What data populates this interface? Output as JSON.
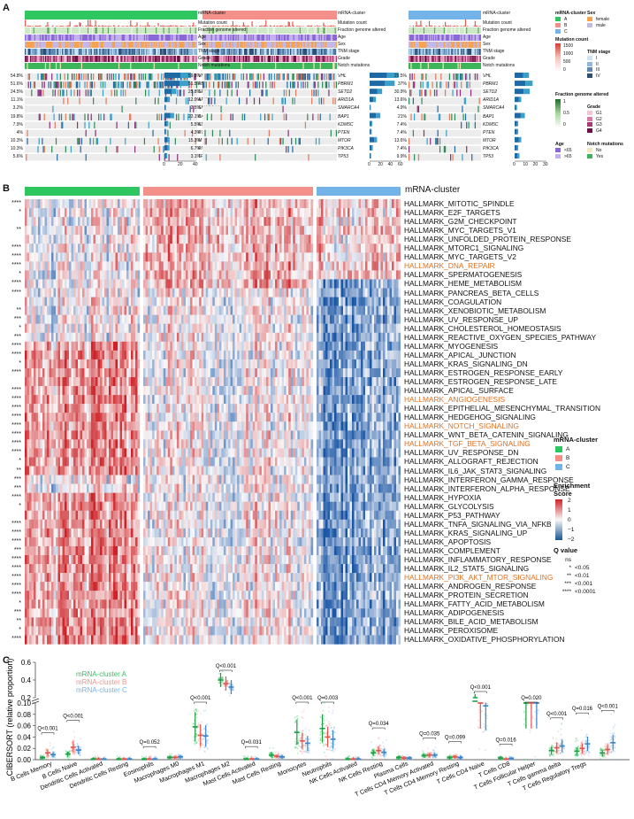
{
  "panels": {
    "a": "A",
    "b": "B",
    "c": "C"
  },
  "colors": {
    "A": "#2ec65f",
    "B": "#f4908a",
    "C": "#74b3e8"
  },
  "panel_a": {
    "track_labels": [
      "mRNA-cluster",
      "Mutation count",
      "Fraction genome altered",
      "Age",
      "Sex",
      "TNM stage",
      "Grade",
      "Notch mutations"
    ],
    "genes": [
      "VHL",
      "PBRM1",
      "SETD2",
      "ARID1A",
      "SMARCA4",
      "BAP1",
      "KDM5C",
      "PTEN",
      "MTOR",
      "PIK3CA",
      "TP53"
    ],
    "pct_A": [
      "54.8%",
      "51.6%",
      "24.5%",
      "11.1%",
      "3.2%",
      "19.8%",
      "7.9%",
      "4%",
      "10.3%",
      "10.3%",
      "5.6%"
    ],
    "pct_B": [
      "59.5%",
      "51.5%",
      "25.8%",
      "12.9%",
      "2.5%",
      "22.1%",
      "5.5%",
      "4.3%",
      "15.3%",
      "6.7%",
      "3.1%"
    ],
    "pct_C": [
      "29.5%",
      "37%",
      "30.9%",
      "13.6%",
      "4.9%",
      "21%",
      "7.4%",
      "7.4%",
      "13.6%",
      "7.4%",
      "9.9%"
    ],
    "axis_A": [
      "0",
      "20",
      "40"
    ],
    "axis_B": [
      "0",
      "20",
      "40",
      "60"
    ],
    "axis_C": [
      "0",
      "10",
      "20",
      "30"
    ],
    "legend": {
      "cluster_title": "mRNA-cluster",
      "cluster_items": [
        "A",
        "B",
        "C"
      ],
      "sex_title": "Sex",
      "sex_items": [
        "female",
        "male"
      ],
      "mut_title": "Mutation count",
      "mut_ticks": [
        "1500",
        "1000",
        "500",
        "0"
      ],
      "tnm_title": "TNM stage",
      "tnm_items": [
        "I",
        "II",
        "III",
        "IV"
      ],
      "fga_title": "Fraction genome altered",
      "fga_ticks": [
        "1",
        "0.5",
        "0"
      ],
      "grade_title": "Grade",
      "grade_items": [
        "G1",
        "G2",
        "G3",
        "G4"
      ],
      "age_title": "Age",
      "age_items": [
        "<65",
        ">65"
      ],
      "notch_title": "Notch mutations",
      "notch_items": [
        "No",
        "Yes"
      ]
    }
  },
  "panel_b": {
    "cluster_header": "mRNA-cluster",
    "pathways": [
      {
        "name": "HALLMARK_MITOTIC_SPINDLE",
        "q": "****",
        "hl": false
      },
      {
        "name": "HALLMARK_E2F_TARGETS",
        "q": "*",
        "hl": false
      },
      {
        "name": "HALLMARK_G2M_CHECKPOINT",
        "q": "",
        "hl": false
      },
      {
        "name": "HALLMARK_MYC_TARGETS_V1",
        "q": "**",
        "hl": false
      },
      {
        "name": "HALLMARK_UNFOLDED_PROTEIN_RESPONSE",
        "q": "",
        "hl": false
      },
      {
        "name": "HALLMARK_MTORC1_SIGNALING",
        "q": "****",
        "hl": false
      },
      {
        "name": "HALLMARK_MYC_TARGETS_V2",
        "q": "****",
        "hl": false
      },
      {
        "name": "HALLMARK_DNA_REPAIR",
        "q": "****",
        "hl": true
      },
      {
        "name": "HALLMARK_SPERMATOGENESIS",
        "q": "*",
        "hl": false
      },
      {
        "name": "HALLMARK_HEME_METABOLISM",
        "q": "****",
        "hl": false
      },
      {
        "name": "HALLMARK_PANCREAS_BETA_CELLS",
        "q": "****",
        "hl": false
      },
      {
        "name": "HALLMARK_COAGULATION",
        "q": "",
        "hl": false
      },
      {
        "name": "HALLMARK_XENOBIOTIC_METABOLISM",
        "q": "**",
        "hl": false
      },
      {
        "name": "HALLMARK_UV_RESPONSE_UP",
        "q": "***",
        "hl": false
      },
      {
        "name": "HALLMARK_CHOLESTEROL_HOMEOSTASIS",
        "q": "*",
        "hl": false
      },
      {
        "name": "HALLMARK_REACTIVE_OXYGEN_SPECIES_PATHWAY",
        "q": "***",
        "hl": false
      },
      {
        "name": "HALLMARK_MYOGENESIS",
        "q": "****",
        "hl": false
      },
      {
        "name": "HALLMARK_APICAL_JUNCTION",
        "q": "****",
        "hl": false
      },
      {
        "name": "HALLMARK_KRAS_SIGNALING_DN",
        "q": "*",
        "hl": false
      },
      {
        "name": "HALLMARK_ESTROGEN_RESPONSE_EARLY",
        "q": "****",
        "hl": false
      },
      {
        "name": "HALLMARK_ESTROGEN_RESPONSE_LATE",
        "q": "",
        "hl": false
      },
      {
        "name": "HALLMARK_APICAL_SURFACE",
        "q": "****",
        "hl": false
      },
      {
        "name": "HALLMARK_ANGIOGENESIS",
        "q": "****",
        "hl": true
      },
      {
        "name": "HALLMARK_EPITHELIAL_MESENCHYMAL_TRANSITION",
        "q": "****",
        "hl": false
      },
      {
        "name": "HALLMARK_HEDGEHOG_SIGNALING",
        "q": "****",
        "hl": false
      },
      {
        "name": "HALLMARK_NOTCH_SIGNALING",
        "q": "****",
        "hl": true
      },
      {
        "name": "HALLMARK_WNT_BETA_CATENIN_SIGNALING",
        "q": "****",
        "hl": false
      },
      {
        "name": "HALLMARK_TGF_BETA_SIGNALING",
        "q": "****",
        "hl": true
      },
      {
        "name": "HALLMARK_UV_RESPONSE_DN",
        "q": "****",
        "hl": false
      },
      {
        "name": "HALLMARK_ALLOGRAFT_REJECTION",
        "q": "*",
        "hl": false
      },
      {
        "name": "HALLMARK_IL6_JAK_STAT3_SIGNALING",
        "q": "**",
        "hl": false
      },
      {
        "name": "HALLMARK_INTERFERON_GAMMA_RESPONSE",
        "q": "***",
        "hl": false
      },
      {
        "name": "HALLMARK_INTERFERON_ALPHA_RESPONSE",
        "q": "***",
        "hl": false
      },
      {
        "name": "HALLMARK_HYPOXIA",
        "q": "****",
        "hl": false
      },
      {
        "name": "HALLMARK_GLYCOLYSIS",
        "q": "*",
        "hl": false
      },
      {
        "name": "HALLMARK_P53_PATHWAY",
        "q": "",
        "hl": false
      },
      {
        "name": "HALLMARK_TNFA_SIGNALING_VIA_NFKB",
        "q": "****",
        "hl": false
      },
      {
        "name": "HALLMARK_KRAS_SIGNALING_UP",
        "q": "****",
        "hl": false
      },
      {
        "name": "HALLMARK_APOPTOSIS",
        "q": "****",
        "hl": false
      },
      {
        "name": "HALLMARK_COMPLEMENT",
        "q": "***",
        "hl": false
      },
      {
        "name": "HALLMARK_INFLAMMATORY_RESPONSE",
        "q": "****",
        "hl": false
      },
      {
        "name": "HALLMARK_IL2_STAT5_SIGNALING",
        "q": "****",
        "hl": false
      },
      {
        "name": "HALLMARK_PI3K_AKT_MTOR_SIGNALING",
        "q": "****",
        "hl": true
      },
      {
        "name": "HALLMARK_ANDROGEN_RESPONSE",
        "q": "****",
        "hl": false
      },
      {
        "name": "HALLMARK_PROTEIN_SECRETION",
        "q": "****",
        "hl": false
      },
      {
        "name": "HALLMARK_FATTY_ACID_METABOLISM",
        "q": "*",
        "hl": false
      },
      {
        "name": "HALLMARK_ADIPOGENESIS",
        "q": "***",
        "hl": false
      },
      {
        "name": "HALLMARK_BILE_ACID_METABOLISM",
        "q": "**",
        "hl": false
      },
      {
        "name": "HALLMARK_PEROXISOME",
        "q": "*",
        "hl": false
      },
      {
        "name": "HALLMARK_OXIDATIVE_PHOSPHORYLATION",
        "q": "****",
        "hl": false
      }
    ],
    "legend": {
      "cluster_title": "mRNA-cluster",
      "cluster_items": [
        "A",
        "B",
        "C"
      ],
      "score_title_1": "Enrichment",
      "score_title_2": "Score",
      "score_ticks": [
        "2",
        "1",
        "0",
        "−1",
        "−2"
      ],
      "q_title": "Q value",
      "q_items": [
        {
          "sym": "ns",
          "val": ""
        },
        {
          "sym": "*",
          "val": "<0.05"
        },
        {
          "sym": "**",
          "val": "<0.01"
        },
        {
          "sym": "***",
          "val": "<0.001"
        },
        {
          "sym": "****",
          "val": "<0.0001"
        }
      ]
    }
  },
  "panel_c": {
    "ylabel": "CIBERSORT (relative proportion)",
    "legend": [
      "mRNA-cluster A",
      "mRNA-cluster B",
      "mRNA-cluster C"
    ],
    "y_ticks_upper": [
      "0.6",
      "0.4",
      "0.2"
    ],
    "y_ticks_lower": [
      "0.10",
      "0.08",
      "0.06",
      "0.04",
      "0.02",
      "0.00"
    ],
    "cells": [
      {
        "name": "B Cells Memory",
        "q": "Q<0.001",
        "m": [
          0.004,
          0.012,
          0.009
        ]
      },
      {
        "name": "B Cells Naive",
        "q": "Q<0.001",
        "m": [
          0.01,
          0.022,
          0.017
        ]
      },
      {
        "name": "Dendritic Cells Activated",
        "q": "",
        "m": [
          0.001,
          0.001,
          0.001
        ]
      },
      {
        "name": "Dendritic Cells Resting",
        "q": "",
        "m": [
          0.001,
          0.001,
          0.001
        ]
      },
      {
        "name": "Eosinophils",
        "q": "Q=0.052",
        "m": [
          0.001,
          0.001,
          0.001
        ]
      },
      {
        "name": "Macrophages M0",
        "q": "",
        "m": [
          0.004,
          0.004,
          0.005
        ]
      },
      {
        "name": "Macrophages M1",
        "q": "Q<0.001",
        "m": [
          0.058,
          0.043,
          0.042
        ]
      },
      {
        "name": "Macrophages M2",
        "q": "Q<0.001",
        "m": [
          0.4,
          0.36,
          0.32
        ]
      },
      {
        "name": "Mast Cells Activated",
        "q": "Q=0.031",
        "m": [
          0.001,
          0.001,
          0.001
        ]
      },
      {
        "name": "Mast Cells Resting",
        "q": "",
        "m": [
          0.008,
          0.006,
          0.005
        ]
      },
      {
        "name": "Monocytes",
        "q": "Q<0.001",
        "m": [
          0.048,
          0.033,
          0.029
        ]
      },
      {
        "name": "Neutrophils",
        "q": "Q=0.003",
        "m": [
          0.055,
          0.04,
          0.036
        ]
      },
      {
        "name": "NK Cells Activated",
        "q": "",
        "m": [
          0.001,
          0.001,
          0.001
        ]
      },
      {
        "name": "NK Cells Resting",
        "q": "Q=0.034",
        "m": [
          0.012,
          0.016,
          0.013
        ]
      },
      {
        "name": "Plasma Cells",
        "q": "",
        "m": [
          0.004,
          0.003,
          0.003
        ]
      },
      {
        "name": "T Cells CD4 Memory Activated",
        "q": "Q=0.035",
        "m": [
          0.007,
          0.008,
          0.008
        ]
      },
      {
        "name": "T Cells CD4 Memory Resting",
        "q": "Q=0.099",
        "m": [
          0.004,
          0.005,
          0.004
        ]
      },
      {
        "name": "T Cells CD4 Naive",
        "q": "Q<0.001",
        "m": [
          0.16,
          0.11,
          0.095
        ]
      },
      {
        "name": "T Cells CD8",
        "q": "Q=0.016",
        "m": [
          0.003,
          0.001,
          0.002
        ]
      },
      {
        "name": "T Cells Follicular Helper",
        "q": "Q=0.020",
        "m": [
          0.15,
          0.11,
          0.14
        ]
      },
      {
        "name": "T Cells gamma delta",
        "q": "Q<0.001",
        "m": [
          0.016,
          0.021,
          0.024
        ]
      },
      {
        "name": "T Cells Regulatory Tregs",
        "q": "Q=0.016",
        "m": [
          0.015,
          0.02,
          0.028
        ]
      },
      {
        "name": "",
        "q": "Q<0.001",
        "m": [
          0.012,
          0.018,
          0.03
        ]
      }
    ]
  }
}
